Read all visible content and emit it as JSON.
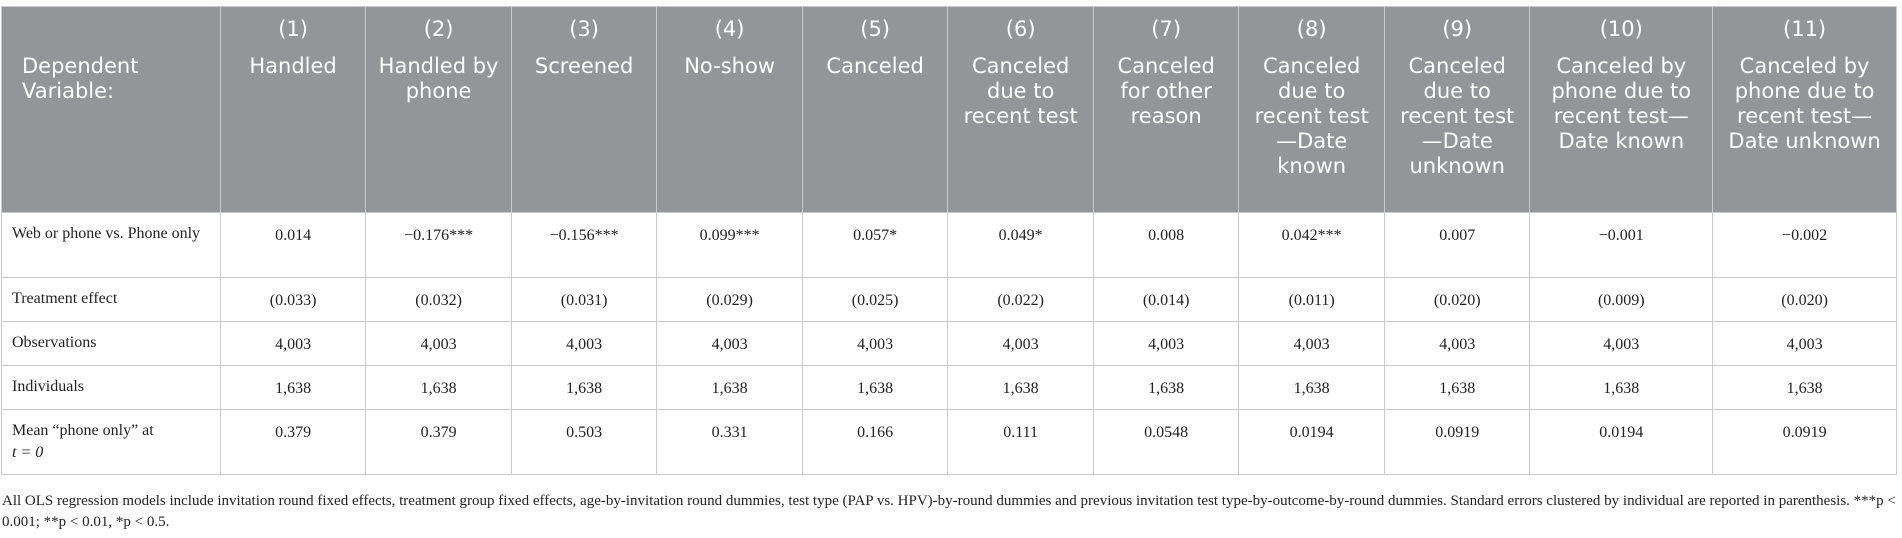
{
  "table": {
    "dep_var_label": "Dependent Variable:",
    "columns": [
      {
        "num": "(1)",
        "label": "Handled"
      },
      {
        "num": "(2)",
        "label": "Handled by phone"
      },
      {
        "num": "(3)",
        "label": "Screened"
      },
      {
        "num": "(4)",
        "label": "No-show"
      },
      {
        "num": "(5)",
        "label": "Canceled"
      },
      {
        "num": "(6)",
        "label": "Canceled due to recent test"
      },
      {
        "num": "(7)",
        "label": "Canceled for other reason"
      },
      {
        "num": "(8)",
        "label": "Canceled due to recent test—Date known"
      },
      {
        "num": "(9)",
        "label": "Canceled due to recent test—Date unknown"
      },
      {
        "num": "(10)",
        "label": "Canceled by phone due to recent test—Date known"
      },
      {
        "num": "(11)",
        "label": "Canceled by phone due to recent test—Date unknown"
      }
    ],
    "rows": [
      {
        "label": "Web or phone vs. Phone only",
        "values": [
          "0.014",
          "−0.176***",
          "−0.156***",
          "0.099***",
          "0.057*",
          "0.049*",
          "0.008",
          "0.042***",
          "0.007",
          "−0.001",
          "−0.002"
        ]
      },
      {
        "label": "Treatment effect",
        "values": [
          "(0.033)",
          "(0.032)",
          "(0.031)",
          "(0.029)",
          "(0.025)",
          "(0.022)",
          "(0.014)",
          "(0.011)",
          "(0.020)",
          "(0.009)",
          "(0.020)"
        ]
      },
      {
        "label": "Observations",
        "values": [
          "4,003",
          "4,003",
          "4,003",
          "4,003",
          "4,003",
          "4,003",
          "4,003",
          "4,003",
          "4,003",
          "4,003",
          "4,003"
        ]
      },
      {
        "label": "Individuals",
        "values": [
          "1,638",
          "1,638",
          "1,638",
          "1,638",
          "1,638",
          "1,638",
          "1,638",
          "1,638",
          "1,638",
          "1,638",
          "1,638"
        ]
      },
      {
        "label_a": "Mean “phone only” at",
        "label_b": "t = 0",
        "values": [
          "0.379",
          "0.379",
          "0.503",
          "0.331",
          "0.166",
          "0.111",
          "0.0548",
          "0.0194",
          "0.0919",
          "0.0194",
          "0.0919"
        ]
      }
    ]
  },
  "note": "All OLS regression models include invitation round fixed effects, treatment group fixed effects, age-by-invitation round dummies, test type (PAP vs. HPV)-by-round dummies and previous invitation test type-by-outcome-by-round dummies. Standard errors clustered by individual are reported in parenthesis. ***p < 0.001; **p < 0.01, *p < 0.5."
}
